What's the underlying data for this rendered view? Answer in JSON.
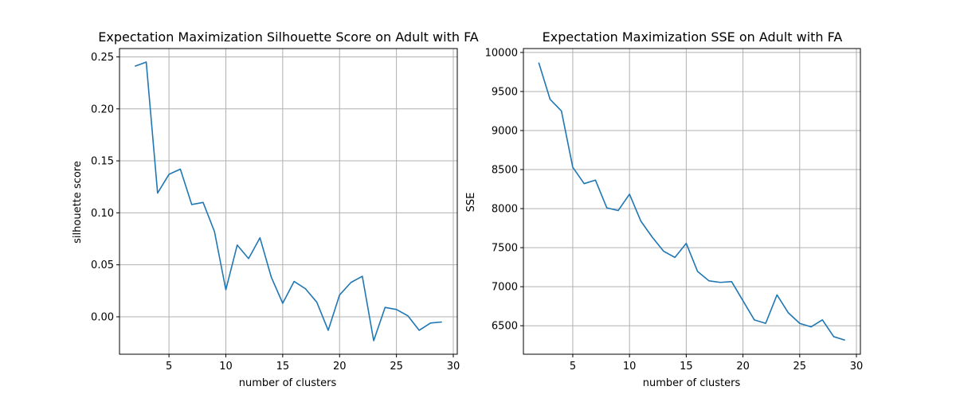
{
  "chart_data": [
    {
      "type": "line",
      "title": "Expectation Maximization Silhouette Score on Adult with FA",
      "xlabel": "number of clusters",
      "ylabel": "silhouette score",
      "xlim": [
        0.65,
        30.35
      ],
      "ylim": [
        -0.036,
        0.258
      ],
      "xticks": [
        5,
        10,
        15,
        20,
        25,
        30
      ],
      "yticks": [
        0.0,
        0.05,
        0.1,
        0.15,
        0.2,
        0.25
      ],
      "ytick_labels": [
        "0.00",
        "0.05",
        "0.10",
        "0.15",
        "0.20",
        "0.25"
      ],
      "grid": true,
      "color": "#1f77b4",
      "x": [
        2,
        3,
        4,
        5,
        6,
        7,
        8,
        9,
        10,
        11,
        12,
        13,
        14,
        15,
        16,
        17,
        18,
        19,
        20,
        21,
        22,
        23,
        24,
        25,
        26,
        27,
        28,
        29
      ],
      "values": [
        0.241,
        0.245,
        0.119,
        0.137,
        0.142,
        0.108,
        0.11,
        0.082,
        0.026,
        0.069,
        0.056,
        0.076,
        0.038,
        0.013,
        0.034,
        0.027,
        0.014,
        -0.013,
        0.021,
        0.033,
        0.039,
        -0.023,
        0.009,
        0.007,
        0.001,
        -0.013,
        -0.006,
        -0.005
      ]
    },
    {
      "type": "line",
      "title": "Expectation Maximization SSE on Adult with FA",
      "xlabel": "number of clusters",
      "ylabel": "SSE",
      "xlim": [
        0.65,
        30.35
      ],
      "ylim": [
        6135,
        10050
      ],
      "xticks": [
        5,
        10,
        15,
        20,
        25,
        30
      ],
      "yticks": [
        6500,
        7000,
        7500,
        8000,
        8500,
        9000,
        9500,
        10000
      ],
      "ytick_labels": [
        "6500",
        "7000",
        "7500",
        "8000",
        "8500",
        "9000",
        "9500",
        "10000"
      ],
      "grid": true,
      "color": "#1f77b4",
      "x": [
        2,
        3,
        4,
        5,
        6,
        7,
        8,
        9,
        10,
        11,
        12,
        13,
        14,
        15,
        16,
        17,
        18,
        19,
        20,
        21,
        22,
        23,
        24,
        25,
        26,
        27,
        28,
        29
      ],
      "values": [
        9870,
        9400,
        9250,
        8530,
        8320,
        8365,
        8010,
        7975,
        8185,
        7840,
        7635,
        7455,
        7375,
        7555,
        7195,
        7075,
        7055,
        7065,
        6820,
        6575,
        6530,
        6895,
        6665,
        6530,
        6485,
        6575,
        6360,
        6315
      ]
    }
  ]
}
